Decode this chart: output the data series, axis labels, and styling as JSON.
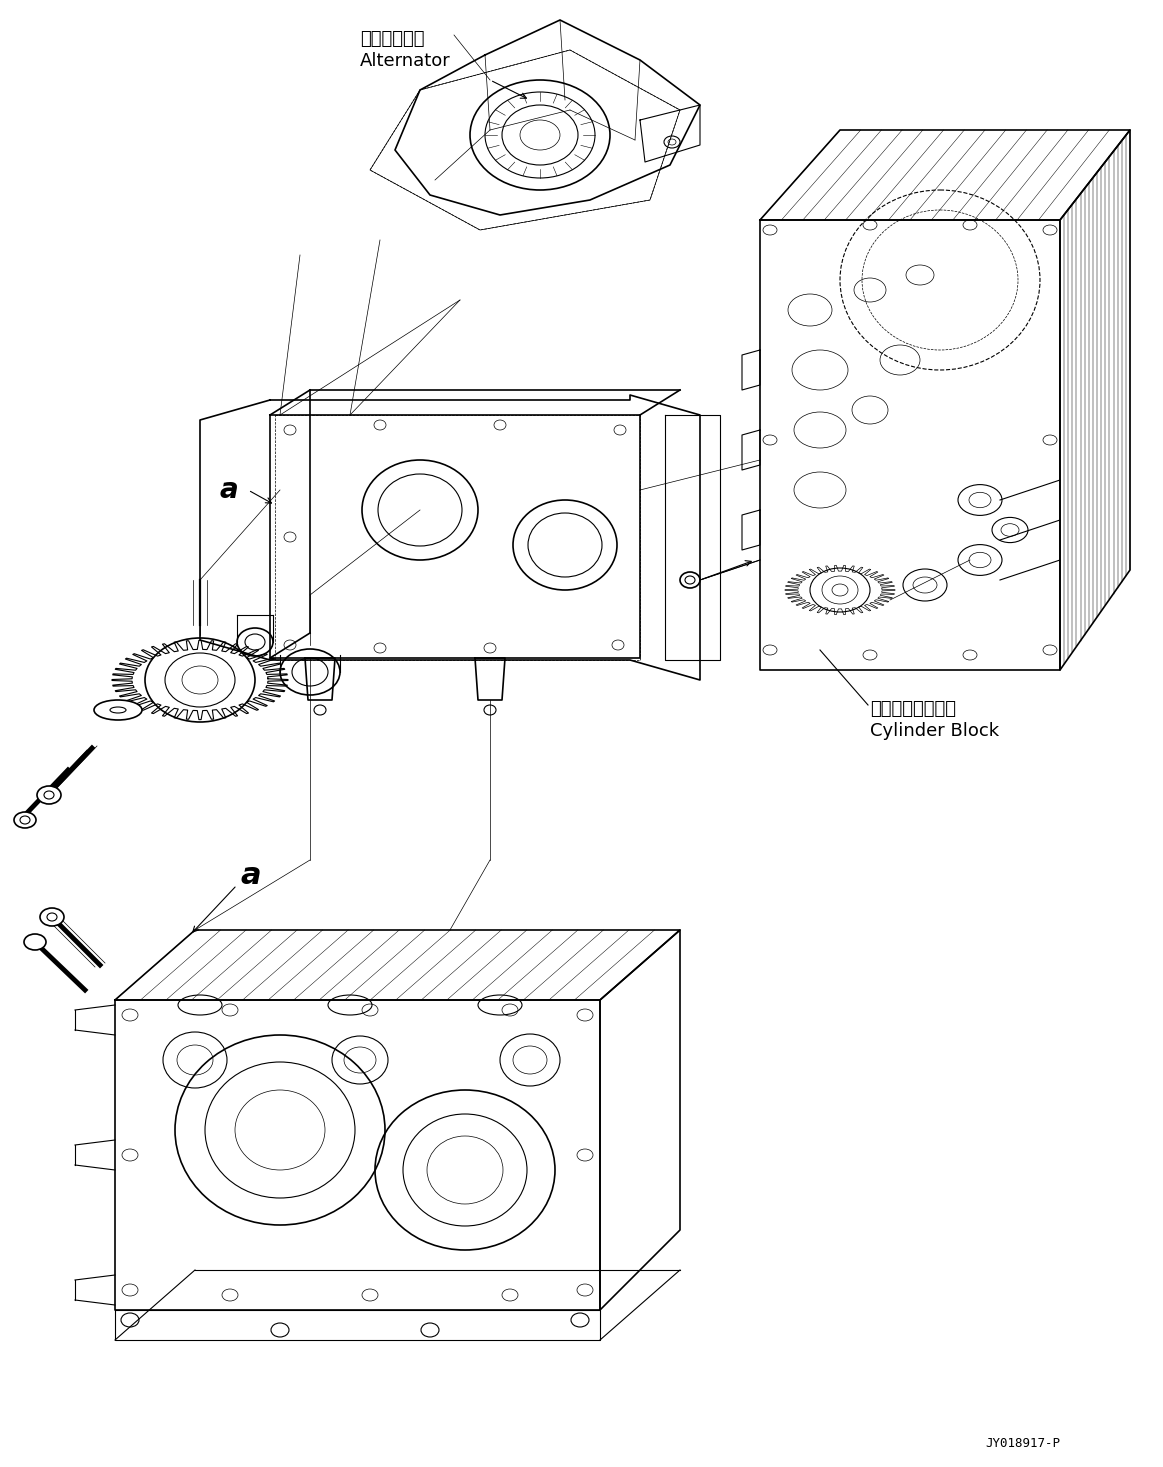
{
  "background_color": "#ffffff",
  "part_code": "JY018917-P",
  "labels": {
    "alternator_jp": "オルタネータ",
    "alternator_en": "Alternator",
    "cylinder_block_jp": "シリンダブロック",
    "cylinder_block_en": "Cylinder Block",
    "label_a1": "a",
    "label_a2": "a"
  },
  "line_color": "#000000",
  "lw_main": 1.2,
  "lw_med": 0.8,
  "lw_thin": 0.5
}
